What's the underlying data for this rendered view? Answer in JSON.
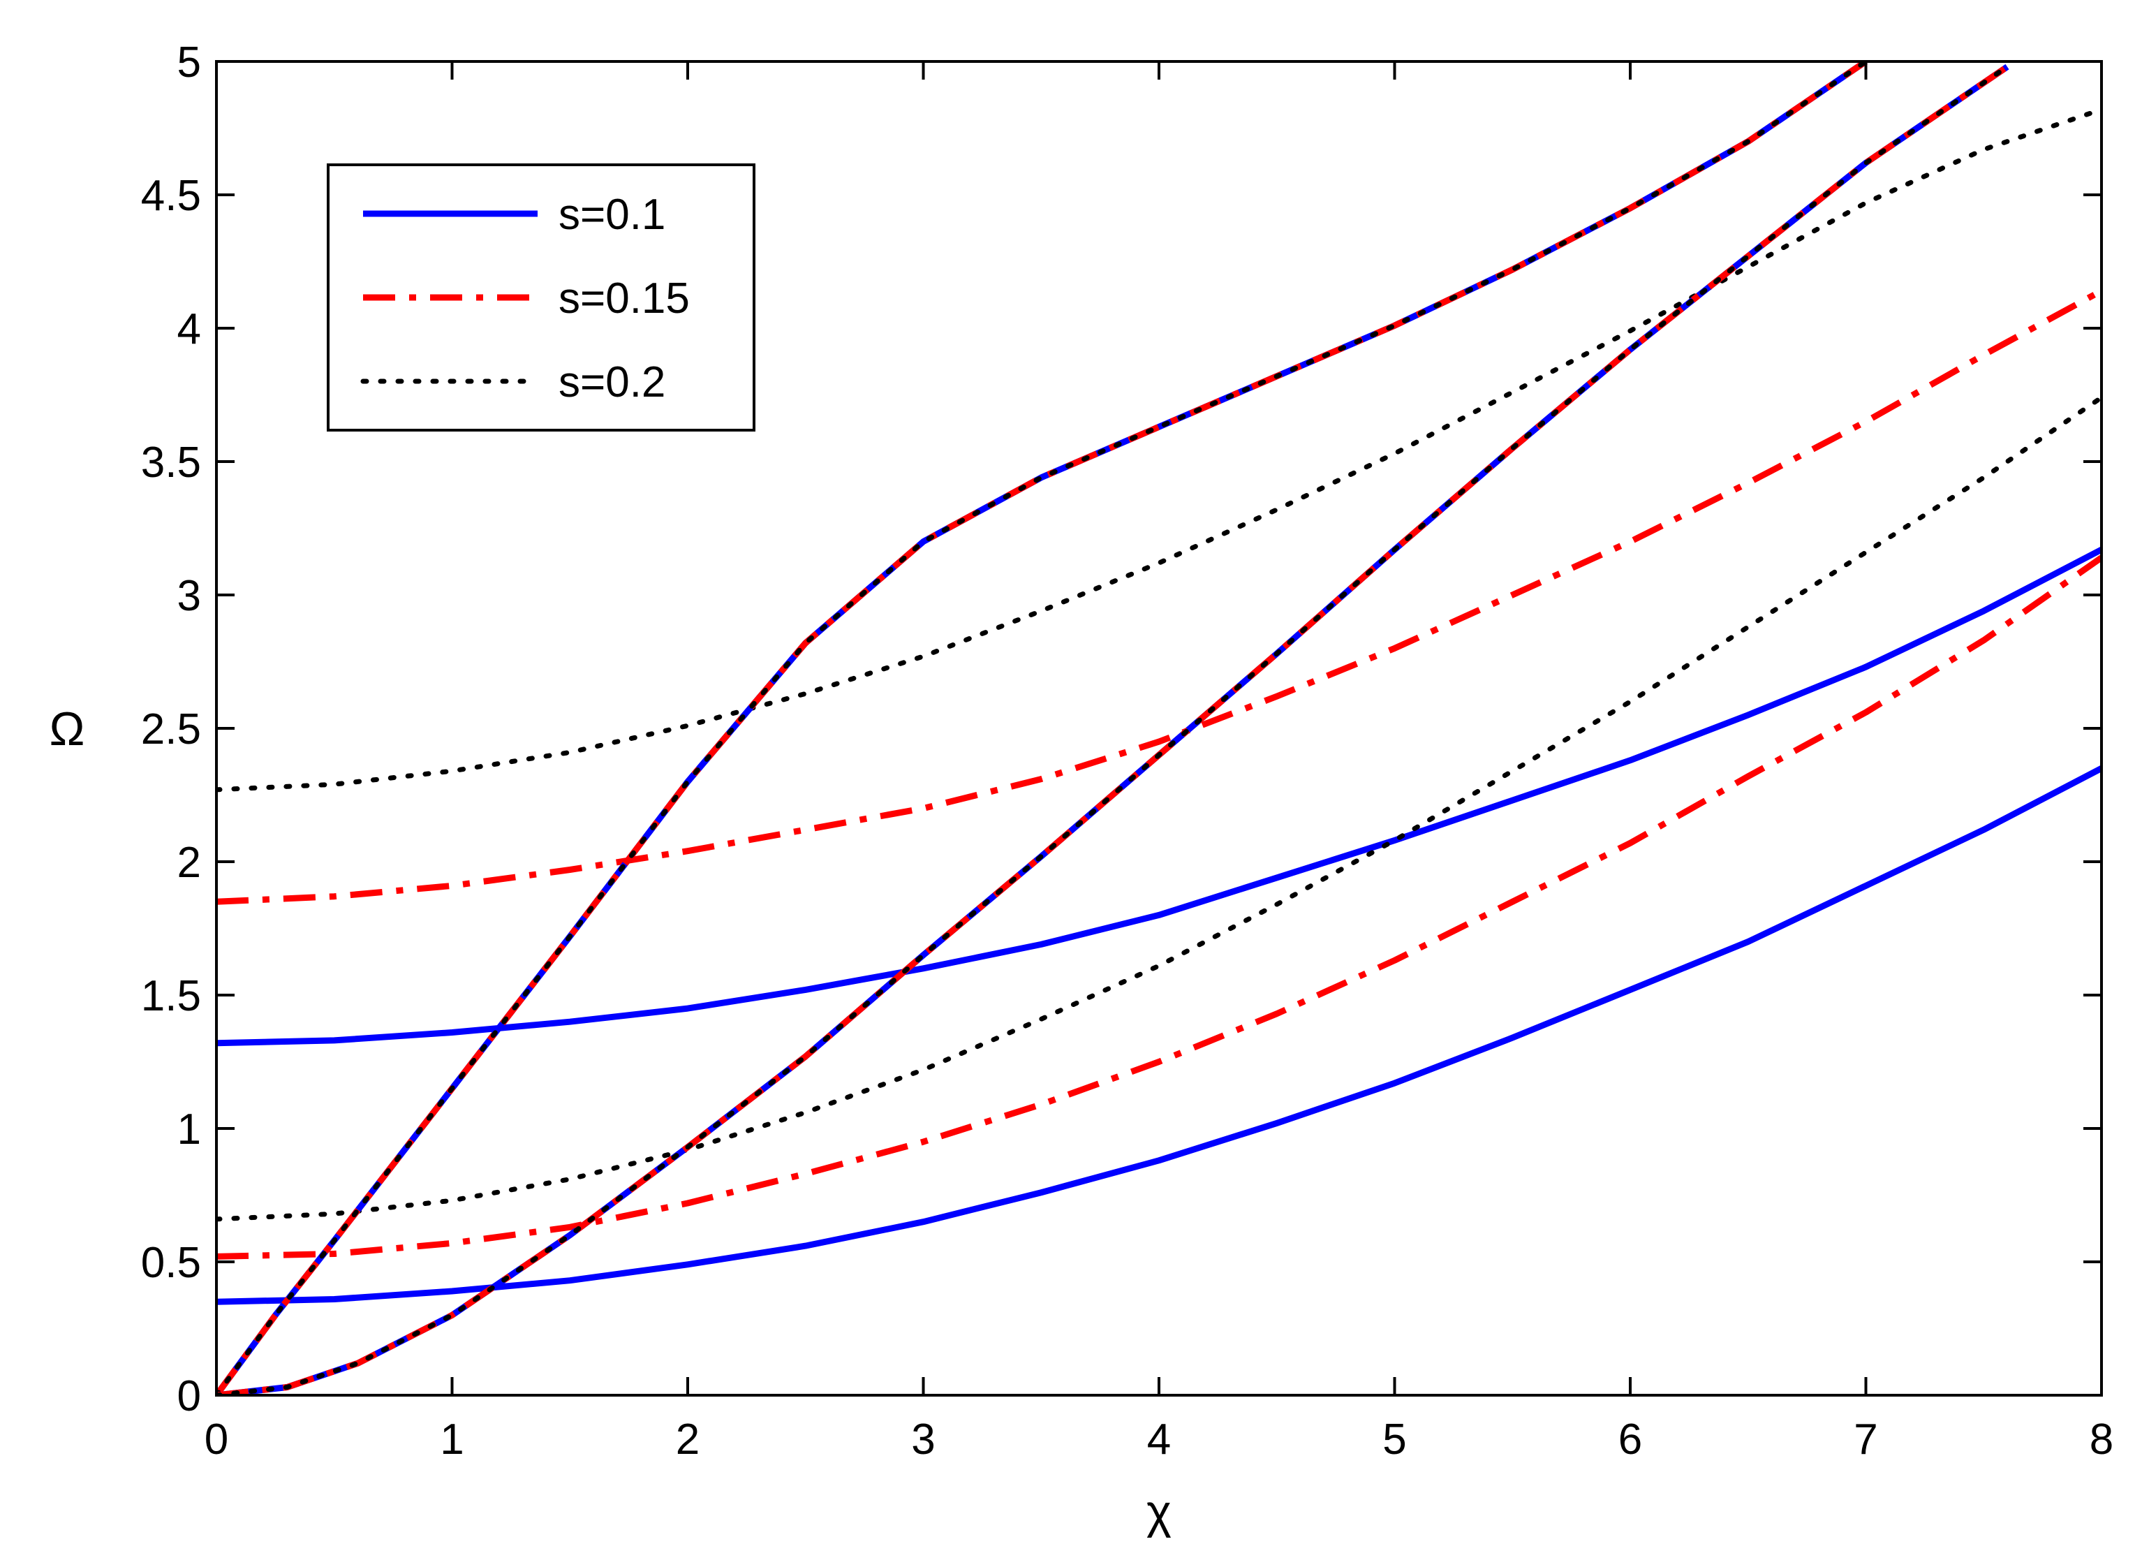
{
  "chart_data": {
    "type": "line",
    "title": "",
    "xlabel": "χ",
    "ylabel": "Ω",
    "xlim": [
      0,
      8
    ],
    "ylim": [
      0,
      5
    ],
    "xticks": [
      0,
      1,
      2,
      3,
      4,
      5,
      6,
      7,
      8
    ],
    "yticks": [
      0,
      0.5,
      1,
      1.5,
      2,
      2.5,
      3,
      3.5,
      4,
      4.5,
      5
    ],
    "xtick_labels": [
      "0",
      "1",
      "2",
      "3",
      "4",
      "5",
      "6",
      "7",
      "8"
    ],
    "ytick_labels": [
      "0",
      "0.5",
      "1",
      "1.5",
      "2",
      "2.5",
      "3",
      "3.5",
      "4",
      "4.5",
      "5"
    ],
    "grid": false,
    "legend": {
      "position": "top-left",
      "entries": [
        {
          "label": "s=0.1",
          "style": "solid",
          "color": "#0000ff"
        },
        {
          "label": "s=0.15",
          "style": "dashdot",
          "color": "#ff0000"
        },
        {
          "label": "s=0.2",
          "style": "dotted",
          "color": "#000000"
        }
      ]
    },
    "curves": [
      {
        "legend_index": 0,
        "x": [
          0,
          0.5,
          1,
          1.5,
          2,
          2.5,
          3,
          3.5,
          4,
          4.5,
          5,
          5.5,
          6,
          6.5,
          7,
          7.5,
          8
        ],
        "y": [
          1.32,
          1.33,
          1.36,
          1.4,
          1.45,
          1.52,
          1.6,
          1.69,
          1.8,
          1.94,
          2.08,
          2.23,
          2.38,
          2.55,
          2.73,
          2.94,
          3.17
        ]
      },
      {
        "legend_index": 0,
        "x": [
          0,
          0.5,
          1,
          1.5,
          2,
          2.5,
          3,
          3.5,
          4,
          4.5,
          5,
          5.5,
          6,
          6.5,
          7,
          7.5,
          8
        ],
        "y": [
          0.35,
          0.36,
          0.39,
          0.43,
          0.49,
          0.56,
          0.65,
          0.76,
          0.88,
          1.02,
          1.17,
          1.34,
          1.52,
          1.7,
          1.91,
          2.12,
          2.35
        ]
      },
      {
        "legend_index": 1,
        "x": [
          0,
          0.5,
          1,
          1.5,
          2,
          2.5,
          3,
          3.5,
          4,
          4.5,
          5,
          5.5,
          6,
          6.5,
          7,
          7.5,
          8
        ],
        "y": [
          1.85,
          1.87,
          1.91,
          1.97,
          2.04,
          2.12,
          2.2,
          2.31,
          2.45,
          2.62,
          2.8,
          3,
          3.2,
          3.42,
          3.65,
          3.9,
          4.14
        ]
      },
      {
        "legend_index": 1,
        "x": [
          0,
          0.5,
          1,
          1.5,
          2,
          2.5,
          3,
          3.5,
          4,
          4.5,
          5,
          5.5,
          6,
          6.5,
          7,
          7.5,
          8
        ],
        "y": [
          0.52,
          0.53,
          0.57,
          0.63,
          0.72,
          0.83,
          0.95,
          1.09,
          1.25,
          1.43,
          1.63,
          1.85,
          2.07,
          2.32,
          2.56,
          2.83,
          3.14
        ]
      },
      {
        "legend_index": 2,
        "x": [
          0,
          0.5,
          1,
          1.5,
          2,
          2.5,
          3,
          3.5,
          4,
          4.5,
          5,
          5.5,
          6,
          6.5,
          7,
          7.5,
          8
        ],
        "y": [
          2.27,
          2.29,
          2.34,
          2.41,
          2.51,
          2.63,
          2.77,
          2.94,
          3.12,
          3.32,
          3.53,
          3.76,
          3.99,
          4.23,
          4.47,
          4.67,
          4.82
        ]
      },
      {
        "legend_index": 2,
        "x": [
          0,
          0.5,
          1,
          1.5,
          2,
          2.5,
          3,
          3.5,
          4,
          4.5,
          5,
          5.5,
          6,
          6.5,
          7,
          7.5,
          8
        ],
        "y": [
          0.66,
          0.68,
          0.73,
          0.81,
          0.92,
          1.06,
          1.22,
          1.41,
          1.61,
          1.84,
          2.08,
          2.34,
          2.6,
          2.88,
          3.16,
          3.44,
          3.74
        ]
      },
      {
        "legend_index": 0,
        "overlaid_by_all": true,
        "x": [
          0,
          0.25,
          0.5,
          1,
          1.5,
          2,
          2.5,
          3,
          3.5,
          4,
          4.5,
          5,
          5.5,
          6,
          6.5,
          7
        ],
        "y": [
          0,
          0.3,
          0.58,
          1.15,
          1.72,
          2.3,
          2.82,
          3.2,
          3.44,
          3.63,
          3.82,
          4.01,
          4.22,
          4.45,
          4.7,
          5
        ]
      },
      {
        "legend_index": 0,
        "overlaid_by_all": true,
        "x": [
          0,
          0.3,
          0.6,
          1,
          1.5,
          2,
          2.5,
          3,
          3.5,
          4,
          4.5,
          5,
          5.5,
          6,
          6.5,
          7,
          7.6
        ],
        "y": [
          0,
          0.03,
          0.12,
          0.3,
          0.6,
          0.93,
          1.27,
          1.65,
          2.02,
          2.4,
          2.78,
          3.17,
          3.55,
          3.92,
          4.27,
          4.62,
          4.98
        ]
      }
    ]
  }
}
